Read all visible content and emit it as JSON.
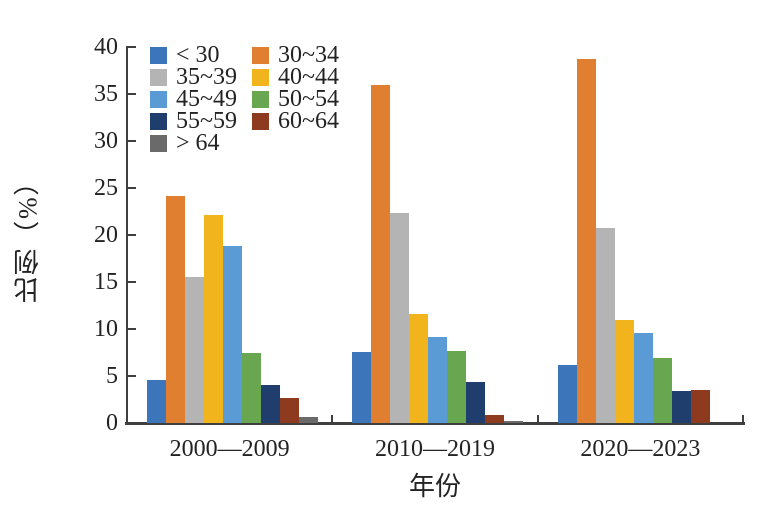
{
  "chart_data": {
    "type": "bar",
    "title": "",
    "xlabel": "年份",
    "ylabel": "比例（%）",
    "ylim": [
      0,
      40
    ],
    "yticks": [
      0,
      5,
      10,
      15,
      20,
      25,
      30,
      35,
      40
    ],
    "categories": [
      "2000—2009",
      "2010—2019",
      "2020—2023"
    ],
    "series": [
      {
        "name": "< 30",
        "color": "#3c75b9",
        "values": [
          4.6,
          7.6,
          6.2
        ]
      },
      {
        "name": "30~34",
        "color": "#e07f2f",
        "values": [
          24.2,
          36.0,
          38.7
        ]
      },
      {
        "name": "35~39",
        "color": "#b4b4b5",
        "values": [
          15.5,
          22.3,
          20.7
        ]
      },
      {
        "name": "40~44",
        "color": "#f1b41c",
        "values": [
          22.1,
          11.6,
          11.0
        ]
      },
      {
        "name": "45~49",
        "color": "#5b9bd5",
        "values": [
          18.8,
          9.1,
          9.6
        ]
      },
      {
        "name": "50~54",
        "color": "#68a750",
        "values": [
          7.4,
          7.7,
          6.9
        ]
      },
      {
        "name": "55~59",
        "color": "#1f3e6d",
        "values": [
          4.0,
          4.4,
          3.4
        ]
      },
      {
        "name": "60~64",
        "color": "#8e3a1e",
        "values": [
          2.7,
          0.8,
          3.5
        ]
      },
      {
        "name": "> 64",
        "color": "#6a6a6a",
        "values": [
          0.6,
          0.2,
          0.0
        ]
      }
    ],
    "legend_position": "upper-left",
    "legend_columns": 2,
    "grid": false,
    "axis_color": "#3f3f3f",
    "text_color": "#232323",
    "background": "#ffffff"
  }
}
